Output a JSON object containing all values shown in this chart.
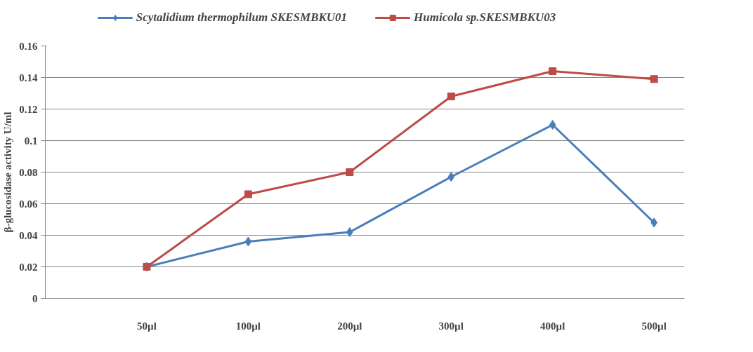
{
  "chart_data": {
    "type": "line",
    "ylabel": "β-glucosidase activity U/ml",
    "categories": [
      null,
      "50µl",
      "100µl",
      "200µl",
      "300µl",
      "400µl",
      "500µl"
    ],
    "series": [
      {
        "name": "Scytalidium thermophilum SKESMBKU01",
        "color": "#4a7ebb",
        "marker": "diamond",
        "values": [
          null,
          0.02,
          0.036,
          0.042,
          0.077,
          0.11,
          0.048
        ]
      },
      {
        "name": "Humicola sp.SKESMBKU03",
        "color": "#be4b48",
        "marker": "square",
        "values": [
          null,
          0.02,
          0.066,
          0.08,
          0.128,
          0.144,
          0.139
        ]
      }
    ],
    "ylim": [
      0,
      0.16
    ],
    "yticks": [
      0,
      0.02,
      0.04,
      0.06,
      0.08,
      0.1,
      0.12,
      0.14,
      0.16
    ],
    "grid": "y",
    "legend": "top"
  }
}
